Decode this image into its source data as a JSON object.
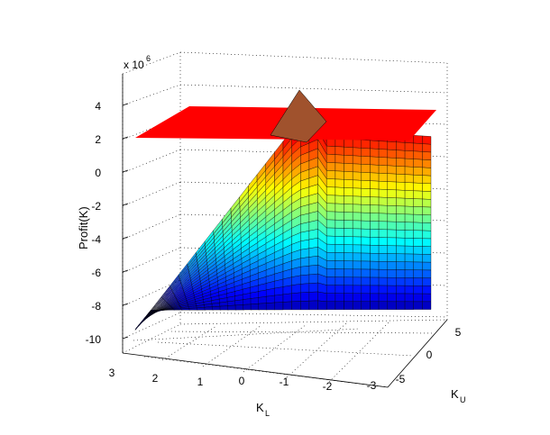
{
  "chart_data": {
    "type": "surface",
    "title": "",
    "zlabel": "Profit(K)",
    "xlabel": "K",
    "xlabel_sub": "L",
    "ylabel": "K",
    "ylabel_sub": "U",
    "z_exponent_label": "x 10",
    "z_exponent": "6",
    "z_ticks": [
      "4",
      "2",
      "0",
      "-2",
      "-4",
      "-6",
      "-8",
      "-10"
    ],
    "z_range": [
      -10,
      4
    ],
    "x_ticks": [
      "3",
      "2",
      "1",
      "0",
      "-1",
      "-2",
      "-3"
    ],
    "x_range": [
      -3,
      3
    ],
    "y_ticks": [
      "5",
      "0",
      "-5"
    ],
    "y_range": [
      -5,
      5
    ],
    "grid": true,
    "colormap": "jet",
    "flat_plane_color": "#ff0000",
    "flat_plane_z": 2.6
  }
}
